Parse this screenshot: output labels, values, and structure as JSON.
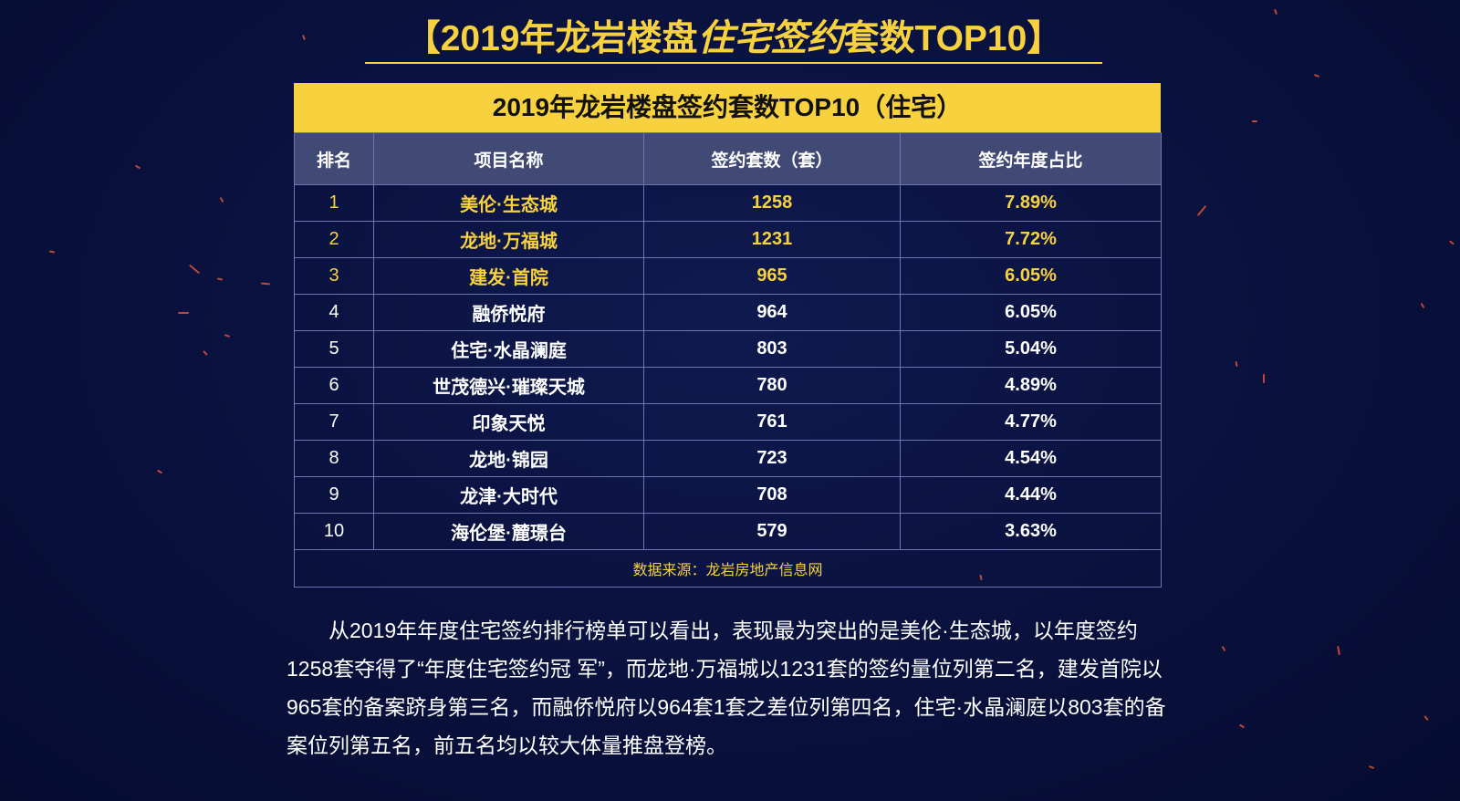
{
  "header": {
    "title_prefix": "【2019年龙岩楼盘",
    "title_script": "住宅签约",
    "title_suffix": "套数TOP10】"
  },
  "table": {
    "caption": "2019年龙岩楼盘签约套数TOP10（住宅）",
    "columns": [
      "排名",
      "项目名称",
      "签约套数（套）",
      "签约年度占比"
    ],
    "rows": [
      [
        "1",
        "美伦·生态城",
        "1258",
        "7.89%"
      ],
      [
        "2",
        "龙地·万福城",
        "1231",
        "7.72%"
      ],
      [
        "3",
        "建发·首院",
        "965",
        "6.05%"
      ],
      [
        "4",
        "融侨悦府",
        "964",
        "6.05%"
      ],
      [
        "5",
        "住宅·水晶澜庭",
        "803",
        "5.04%"
      ],
      [
        "6",
        "世茂德兴·璀璨天城",
        "780",
        "4.89%"
      ],
      [
        "7",
        "印象天悦",
        "761",
        "4.77%"
      ],
      [
        "8",
        "龙地·锦园",
        "723",
        "4.54%"
      ],
      [
        "9",
        "龙津·大时代",
        "708",
        "4.44%"
      ],
      [
        "10",
        "海伦堡·麓璟台",
        "579",
        "3.63%"
      ]
    ],
    "source": "数据来源：龙岩房地产信息网"
  },
  "paragraph": "从2019年年度住宅签约排行榜单可以看出，表现最为突出的是美伦·生态城，以年度签约1258套夺得了“年度住宅签约冠 军”，而龙地·万福城以1231套的签约量位列第二名，建发首院以965套的备案跻身第三名，而融侨悦府以964套1套之差位列第四名，住宅·水晶澜庭以803套的备案位列第五名，前五名均以较大体量推盘登榜。",
  "colors": {
    "background": "#0a1240",
    "accent_yellow": "#f7d23e",
    "header_row": "#414a75",
    "border": "#6c76b4",
    "spark": "#ff5a3a"
  }
}
